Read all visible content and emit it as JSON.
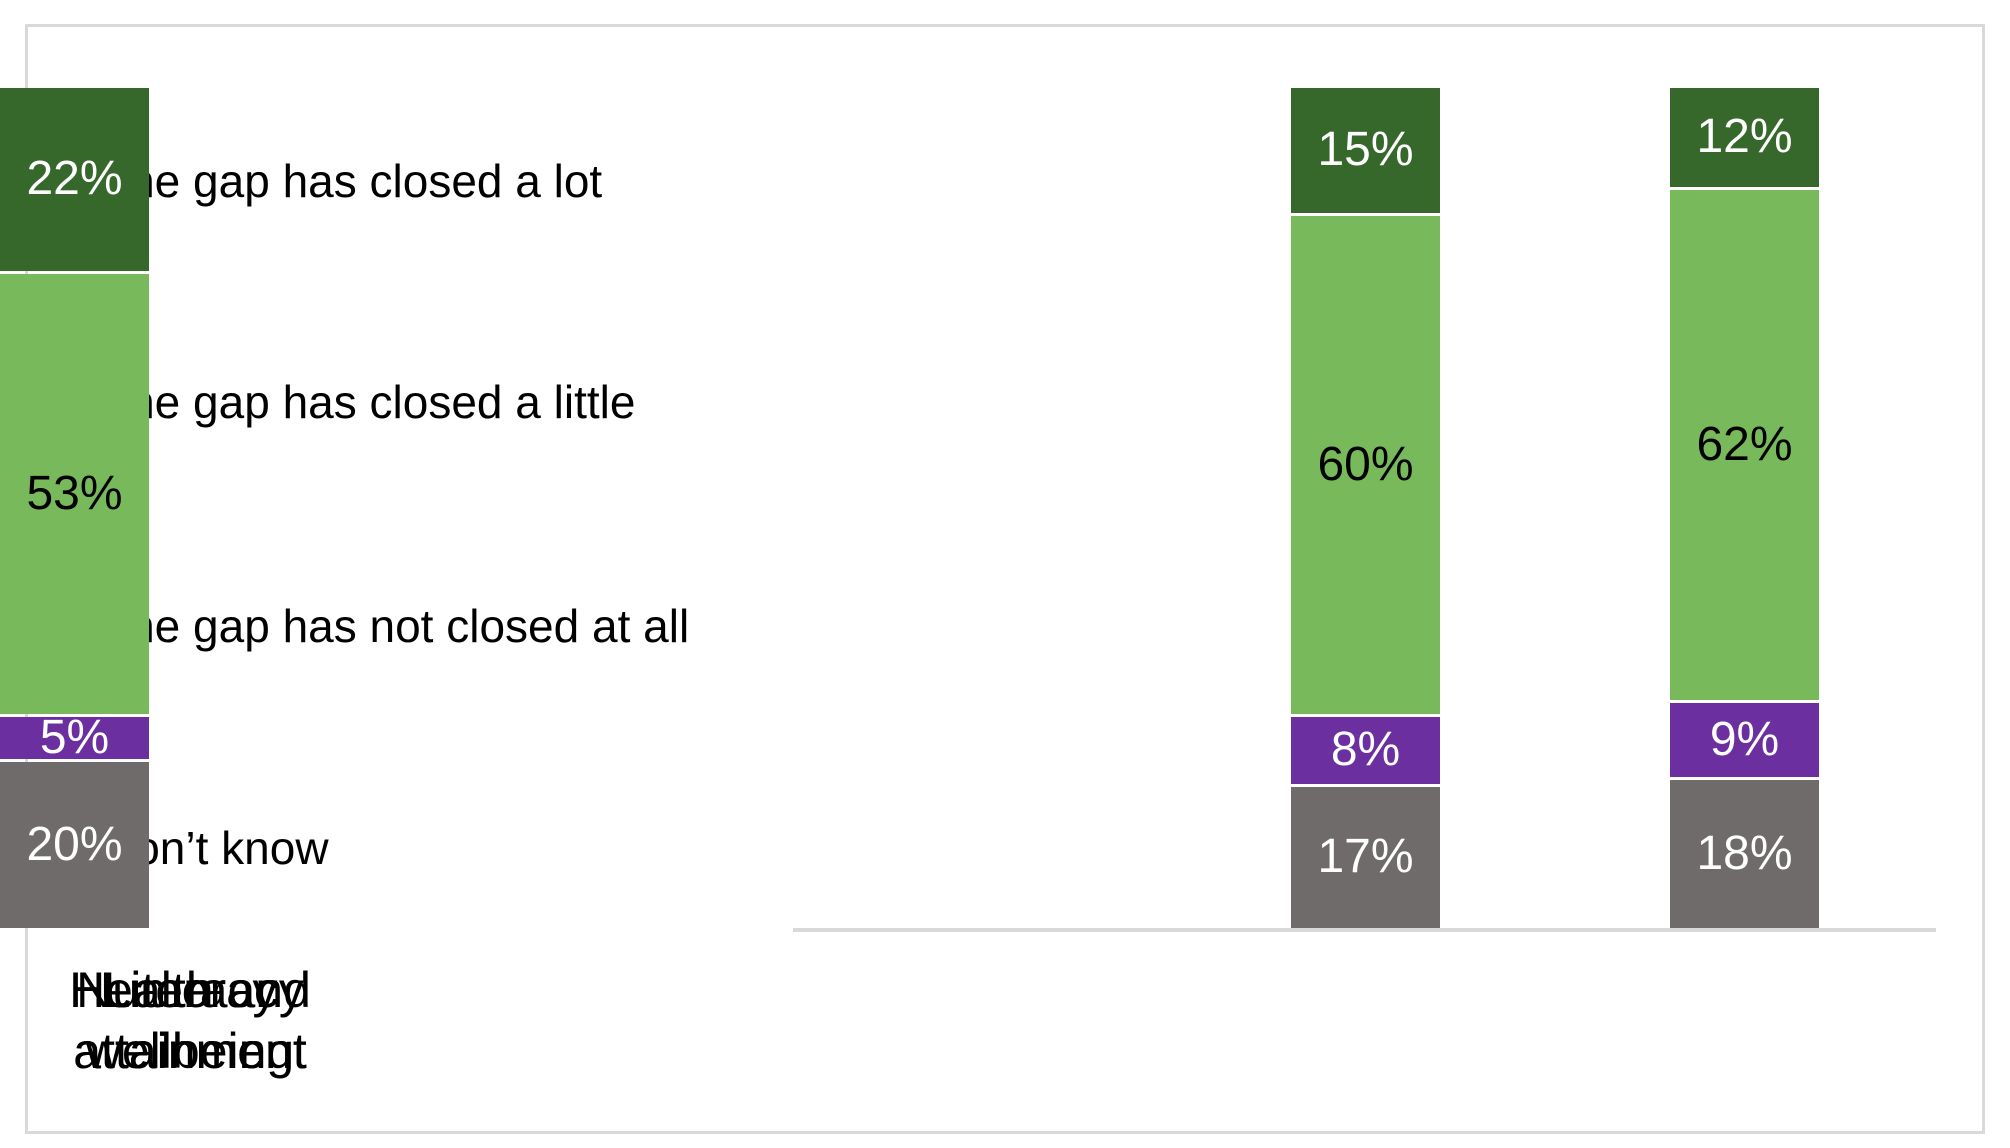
{
  "chart_data": {
    "type": "bar",
    "subtype": "stacked-100",
    "orientation": "vertical",
    "title": "",
    "categories": [
      "Literacy attainment",
      "Numeracy attainment",
      "Health and wellbeing"
    ],
    "series": [
      {
        "name": "The gap has closed a lot",
        "color": "#36682C",
        "label_color": "#FFFFFF",
        "values": [
          15,
          12,
          22
        ]
      },
      {
        "name": "The gap has closed a little",
        "color": "#77B95B",
        "label_color": "#000000",
        "values": [
          60,
          62,
          53
        ]
      },
      {
        "name": "The gap has not closed at all",
        "color": "#6B2FA0",
        "label_color": "#FFFFFF",
        "values": [
          8,
          9,
          5
        ]
      },
      {
        "name": "Don’t know",
        "color": "#6F6B6B",
        "label_color": "#FFFFFF",
        "values": [
          17,
          18,
          20
        ]
      }
    ],
    "data_labels_visible": true,
    "value_suffix": "%",
    "ylim": [
      0,
      100
    ],
    "gridlines": false,
    "y_axis_visible": false,
    "legend_position": "left",
    "axis_line_color": "#D9D9D9",
    "frame_border_color": "#D9D9D9",
    "background_color": "#FFFFFF"
  }
}
